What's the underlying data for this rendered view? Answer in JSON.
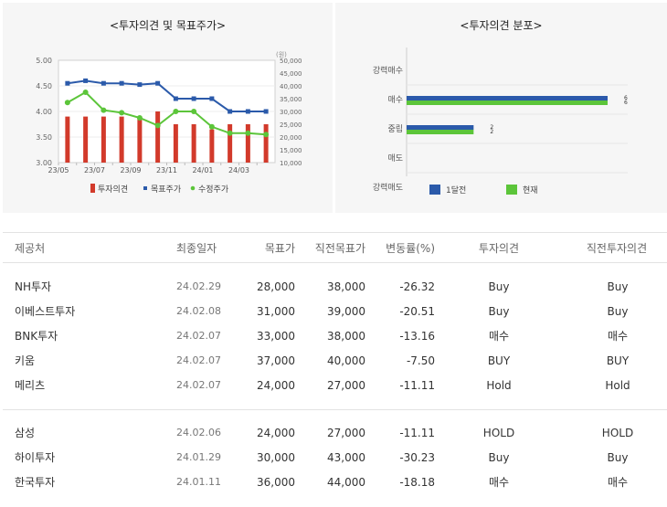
{
  "left_panel": {
    "title": "<투자의견 및 목표주가>"
  },
  "right_panel": {
    "title": "<투자의견 분포>"
  },
  "chart_data": [
    {
      "type": "bar+line",
      "title": "<투자의견 및 목표주가>",
      "x": [
        "23/05",
        "23/06",
        "23/07",
        "23/08",
        "23/09",
        "23/10",
        "23/11",
        "23/12",
        "24/01",
        "24/02",
        "24/03",
        "24/04"
      ],
      "x_tick_labels": [
        "23/05",
        "23/07",
        "23/09",
        "23/11",
        "24/01",
        "24/03"
      ],
      "left_axis": {
        "ticks": [
          "5.00",
          "4.50",
          "4.00",
          "3.50",
          "3.00"
        ],
        "ylim": [
          3.0,
          5.0
        ]
      },
      "right_axis": {
        "unit": "(원)",
        "ticks": [
          "50,000",
          "45,000",
          "40,000",
          "35,000",
          "30,000",
          "25,000",
          "20,000",
          "15,000",
          "10,000"
        ],
        "ylim": [
          10000,
          50000
        ]
      },
      "series": [
        {
          "name": "투자의견",
          "kind": "bar",
          "axis": "left",
          "color": "#d23a2b",
          "values": [
            3.9,
            3.9,
            3.9,
            3.9,
            3.85,
            4.0,
            3.75,
            3.75,
            3.65,
            3.75,
            3.75,
            3.75
          ]
        },
        {
          "name": "목표주가",
          "kind": "line",
          "axis": "right",
          "color": "#2b5aaa",
          "values": [
            41000,
            42000,
            41000,
            41000,
            40500,
            41000,
            35000,
            35000,
            35000,
            30000,
            30000,
            30000
          ]
        },
        {
          "name": "수정주가",
          "kind": "line",
          "axis": "right",
          "color": "#5cc53a",
          "values": [
            33500,
            37500,
            30500,
            29500,
            27500,
            24500,
            30000,
            30000,
            24000,
            21500,
            21500,
            21000
          ]
        }
      ],
      "legend": "bottom"
    },
    {
      "type": "bar",
      "orientation": "horizontal",
      "title": "<투자의견 분포>",
      "categories": [
        "강력매수",
        "매수",
        "중립",
        "매도",
        "강력매도"
      ],
      "series": [
        {
          "name": "1달전",
          "color": "#2b5aaa",
          "values": [
            0,
            6,
            2,
            0,
            0
          ]
        },
        {
          "name": "현재",
          "color": "#5cc53a",
          "values": [
            0,
            6,
            2,
            0,
            0
          ]
        }
      ],
      "xlim": [
        0,
        6
      ],
      "legend": "bottom"
    }
  ],
  "table": {
    "headers": {
      "name": "제공처",
      "date": "최종일자",
      "target": "목표가",
      "prev_target": "직전목표가",
      "change": "변동률(%)",
      "opinion": "투자의견",
      "prev_opinion": "직전투자의견"
    },
    "rows_group1": [
      {
        "name": "NH투자",
        "date": "24.02.29",
        "target": "28,000",
        "prev_target": "38,000",
        "change": "-26.32",
        "opinion": "Buy",
        "prev_opinion": "Buy"
      },
      {
        "name": "이베스트투자",
        "date": "24.02.08",
        "target": "31,000",
        "prev_target": "39,000",
        "change": "-20.51",
        "opinion": "Buy",
        "prev_opinion": "Buy"
      },
      {
        "name": "BNK투자",
        "date": "24.02.07",
        "target": "33,000",
        "prev_target": "38,000",
        "change": "-13.16",
        "opinion": "매수",
        "prev_opinion": "매수"
      },
      {
        "name": "키움",
        "date": "24.02.07",
        "target": "37,000",
        "prev_target": "40,000",
        "change": "-7.50",
        "opinion": "BUY",
        "prev_opinion": "BUY"
      },
      {
        "name": "메리츠",
        "date": "24.02.07",
        "target": "24,000",
        "prev_target": "27,000",
        "change": "-11.11",
        "opinion": "Hold",
        "prev_opinion": "Hold"
      }
    ],
    "rows_group2": [
      {
        "name": "삼성",
        "date": "24.02.06",
        "target": "24,000",
        "prev_target": "27,000",
        "change": "-11.11",
        "opinion": "HOLD",
        "prev_opinion": "HOLD"
      },
      {
        "name": "하이투자",
        "date": "24.01.29",
        "target": "30,000",
        "prev_target": "43,000",
        "change": "-30.23",
        "opinion": "Buy",
        "prev_opinion": "Buy"
      },
      {
        "name": "한국투자",
        "date": "24.01.11",
        "target": "36,000",
        "prev_target": "44,000",
        "change": "-18.18",
        "opinion": "매수",
        "prev_opinion": "매수"
      }
    ]
  }
}
